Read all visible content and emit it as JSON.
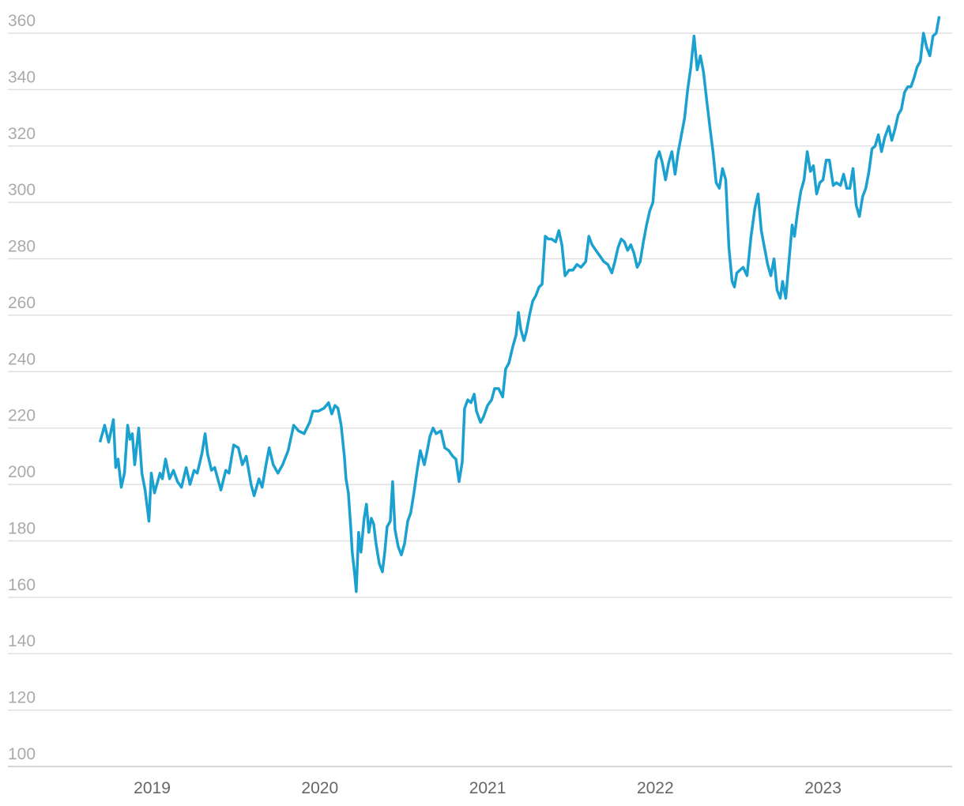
{
  "chart_data": {
    "type": "line",
    "color": "#1ba1cf",
    "grid": true,
    "xlim": [
      2018.14,
      2023.77
    ],
    "xticks": [
      2019,
      2020,
      2021,
      2022,
      2023
    ],
    "ylim": [
      100,
      360
    ],
    "yticks": [
      100,
      120,
      140,
      160,
      180,
      200,
      220,
      240,
      260,
      280,
      300,
      320,
      340,
      360
    ],
    "x": [
      2018.689,
      2018.717,
      2018.741,
      2018.769,
      2018.783,
      2018.797,
      2018.816,
      2018.835,
      2018.854,
      2018.868,
      2018.882,
      2018.896,
      2018.92,
      2018.939,
      2018.958,
      2018.981,
      2018.995,
      2019.014,
      2019.047,
      2019.061,
      2019.08,
      2019.104,
      2019.127,
      2019.151,
      2019.175,
      2019.203,
      2019.226,
      2019.25,
      2019.269,
      2019.297,
      2019.316,
      2019.33,
      2019.354,
      2019.373,
      2019.41,
      2019.439,
      2019.458,
      2019.486,
      2019.514,
      2019.538,
      2019.561,
      2019.59,
      2019.608,
      2019.637,
      2019.656,
      2019.679,
      2019.698,
      2019.722,
      2019.75,
      2019.778,
      2019.811,
      2019.844,
      2019.873,
      2019.906,
      2019.939,
      2019.958,
      2019.991,
      2020.024,
      2020.052,
      2020.071,
      2020.09,
      2020.108,
      2020.127,
      2020.146,
      2020.156,
      2020.17,
      2020.184,
      2020.193,
      2020.208,
      2020.217,
      2020.231,
      2020.245,
      2020.264,
      2020.278,
      2020.292,
      2020.307,
      2020.321,
      2020.335,
      2020.354,
      2020.373,
      2020.387,
      2020.401,
      2020.42,
      2020.434,
      2020.448,
      2020.467,
      2020.486,
      2020.505,
      2020.524,
      2020.542,
      2020.561,
      2020.58,
      2020.599,
      2020.623,
      2020.637,
      2020.656,
      2020.675,
      2020.693,
      2020.722,
      2020.745,
      2020.769,
      2020.792,
      2020.811,
      2020.83,
      2020.849,
      2020.863,
      2020.882,
      2020.901,
      2020.92,
      2020.934,
      2020.958,
      2020.976,
      2021.0,
      2021.024,
      2021.042,
      2021.066,
      2021.09,
      2021.108,
      2021.127,
      2021.151,
      2021.17,
      2021.184,
      2021.198,
      2021.217,
      2021.231,
      2021.25,
      2021.269,
      2021.288,
      2021.307,
      2021.325,
      2021.344,
      2021.363,
      2021.382,
      2021.406,
      2021.425,
      2021.443,
      2021.462,
      2021.486,
      2021.509,
      2021.533,
      2021.557,
      2021.585,
      2021.604,
      2021.623,
      2021.646,
      2021.67,
      2021.693,
      2021.717,
      2021.741,
      2021.759,
      2021.778,
      2021.797,
      2021.816,
      2021.835,
      2021.854,
      2021.873,
      2021.892,
      2021.91,
      2021.929,
      2021.948,
      2021.967,
      2021.986,
      2022.005,
      2022.024,
      2022.042,
      2022.061,
      2022.08,
      2022.099,
      2022.118,
      2022.137,
      2022.156,
      2022.175,
      2022.193,
      2022.212,
      2022.231,
      2022.25,
      2022.269,
      2022.288,
      2022.307,
      2022.325,
      2022.344,
      2022.363,
      2022.382,
      2022.401,
      2022.42,
      2022.439,
      2022.458,
      2022.472,
      2022.486,
      2022.505,
      2022.524,
      2022.547,
      2022.571,
      2022.594,
      2022.613,
      2022.632,
      2022.651,
      2022.67,
      2022.689,
      2022.708,
      2022.726,
      2022.745,
      2022.759,
      2022.778,
      2022.797,
      2022.816,
      2022.83,
      2022.849,
      2022.868,
      2022.887,
      2022.906,
      2022.925,
      2022.943,
      2022.962,
      2022.981,
      2023.0,
      2023.019,
      2023.038,
      2023.061,
      2023.08,
      2023.104,
      2023.123,
      2023.142,
      2023.16,
      2023.179,
      2023.198,
      2023.217,
      2023.236,
      2023.255,
      2023.274,
      2023.292,
      2023.311,
      2023.33,
      2023.349,
      2023.368,
      2023.392,
      2023.41,
      2023.429,
      2023.448,
      2023.467,
      2023.486,
      2023.505,
      2023.524,
      2023.542,
      2023.561,
      2023.58,
      2023.599,
      2023.618,
      2023.637,
      2023.656,
      2023.675,
      2023.693
    ],
    "values": [
      215,
      221,
      215,
      223,
      206,
      209,
      199,
      204,
      221,
      216,
      218,
      207,
      220,
      204,
      198,
      187,
      204,
      197,
      204,
      202,
      209,
      202,
      205,
      201,
      199,
      206,
      200,
      205,
      204,
      211,
      218,
      211,
      205,
      206,
      198,
      205,
      204,
      214,
      213,
      207,
      210,
      200,
      196,
      202,
      199,
      207,
      213,
      207,
      204,
      207,
      212,
      221,
      219,
      218,
      222,
      226,
      226,
      227,
      229,
      225,
      228,
      227,
      221,
      210,
      202,
      197,
      185,
      176,
      168,
      162,
      183,
      176,
      188,
      193,
      183,
      188,
      186,
      179,
      172,
      169,
      176,
      185,
      187,
      201,
      184,
      178,
      175,
      179,
      187,
      190,
      197,
      205,
      212,
      207,
      211,
      217,
      220,
      218,
      219,
      213,
      212,
      210,
      209,
      201,
      208,
      227,
      230,
      229,
      232,
      226,
      222,
      224,
      228,
      230,
      234,
      234,
      231,
      241,
      243,
      249,
      253,
      261,
      255,
      251,
      254,
      260,
      265,
      267,
      270,
      271,
      288,
      287,
      287,
      286,
      290,
      285,
      274,
      276,
      276,
      278,
      277,
      279,
      288,
      285,
      283,
      281,
      279,
      278,
      275,
      279,
      284,
      287,
      286,
      283,
      285,
      282,
      277,
      279,
      286,
      292,
      297,
      300,
      315,
      318,
      314,
      308,
      314,
      318,
      310,
      318,
      324,
      330,
      340,
      348,
      359,
      347,
      352,
      346,
      336,
      327,
      318,
      307,
      305,
      312,
      308,
      284,
      272,
      270,
      275,
      276,
      277,
      274,
      288,
      298,
      303,
      290,
      284,
      278,
      274,
      280,
      269,
      266,
      272,
      266,
      279,
      292,
      288,
      297,
      304,
      308,
      318,
      311,
      313,
      303,
      307,
      308,
      315,
      315,
      306,
      307,
      306,
      310,
      305,
      305,
      312,
      299,
      295,
      302,
      305,
      311,
      319,
      320,
      324,
      318,
      323,
      327,
      322,
      326,
      331,
      333,
      339,
      341,
      341,
      344,
      348,
      350,
      360,
      355,
      352,
      359,
      360,
      366
    ]
  }
}
